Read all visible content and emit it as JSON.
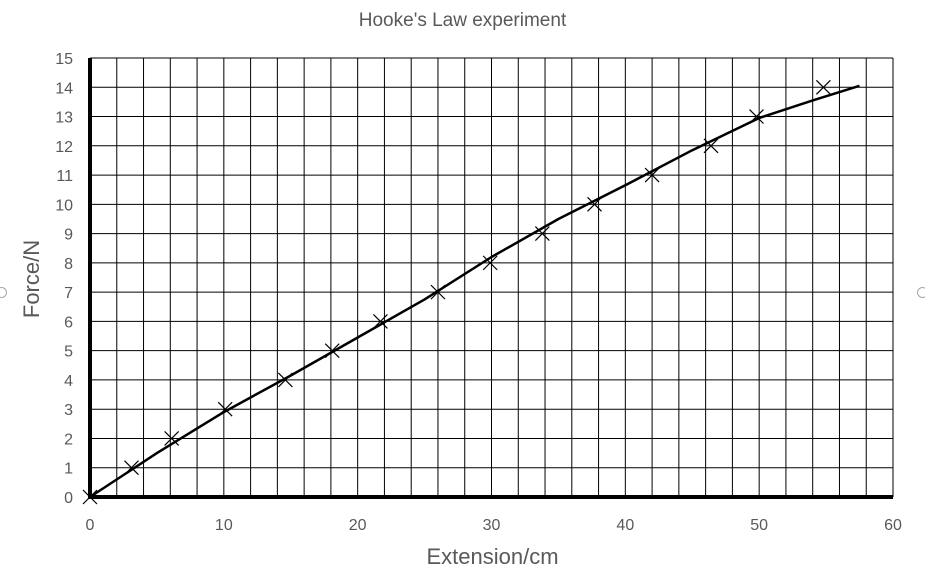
{
  "chart_data": {
    "type": "scatter",
    "title": "Hooke's Law experiment",
    "xlabel": "Extension/cm",
    "ylabel": "Force/N",
    "xlim": [
      0,
      60
    ],
    "ylim": [
      0,
      15
    ],
    "grid": true,
    "x_ticks": [
      0,
      10,
      20,
      30,
      40,
      50,
      60
    ],
    "y_ticks": [
      0,
      1,
      2,
      3,
      4,
      5,
      6,
      7,
      8,
      9,
      10,
      11,
      12,
      13,
      14,
      15
    ],
    "points": {
      "marker": "cross",
      "x": [
        0,
        3.1,
        6.1,
        10.1,
        14.6,
        18.1,
        21.7,
        26.0,
        29.9,
        33.8,
        37.7,
        42.0,
        46.4,
        49.8,
        54.8
      ],
      "y": [
        0,
        1,
        2,
        3,
        4,
        5,
        6,
        7,
        8,
        9,
        10,
        11,
        12,
        13,
        14
      ]
    },
    "fit_line": {
      "x": [
        0,
        5,
        10,
        15,
        20,
        25,
        30,
        35,
        40,
        45,
        50,
        54,
        57.5
      ],
      "y": [
        0,
        1.5,
        2.9,
        4.15,
        5.45,
        6.75,
        8.2,
        9.5,
        10.65,
        11.85,
        12.95,
        13.55,
        14.05
      ]
    }
  },
  "colors": {
    "grid": "#000000",
    "text": "#595959",
    "line": "#000000"
  }
}
